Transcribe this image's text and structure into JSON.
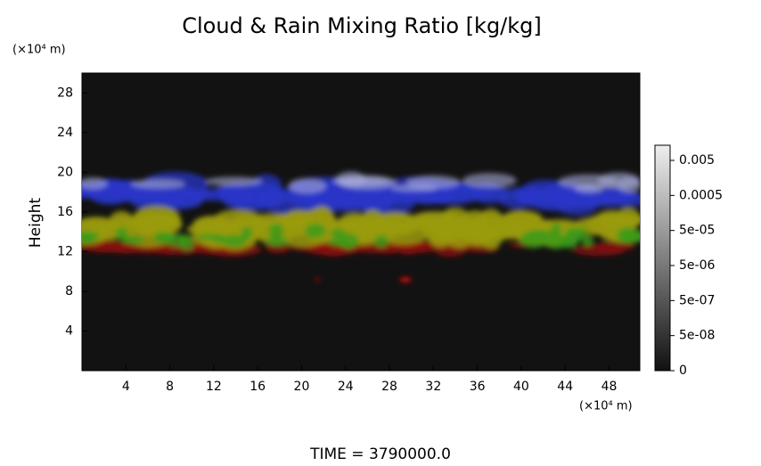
{
  "chart_data": {
    "type": "volume-render",
    "title": "Cloud & Rain Mixing Ratio [kg/kg]",
    "y_label": "Height",
    "y_unit": "(×10⁴ m)",
    "x_unit": "(×10⁴ m)",
    "time_label": "TIME = 3790000.0",
    "xlim": [
      0,
      50.8
    ],
    "xticks": [
      4,
      8,
      12,
      16,
      20,
      24,
      28,
      32,
      36,
      40,
      44,
      48
    ],
    "ylim": [
      0,
      30
    ],
    "yticks": [
      4,
      8,
      12,
      16,
      20,
      24,
      28
    ],
    "colorbar_ticks": [
      0,
      {
        "value": 5e-08,
        "label": "5e-08"
      },
      {
        "value": 5e-07,
        "label": "5e-07"
      },
      {
        "value": 5e-06,
        "label": "5e-06"
      },
      {
        "value": 5e-05,
        "label": "5e-05"
      },
      0.0005,
      0.005
    ]
  }
}
